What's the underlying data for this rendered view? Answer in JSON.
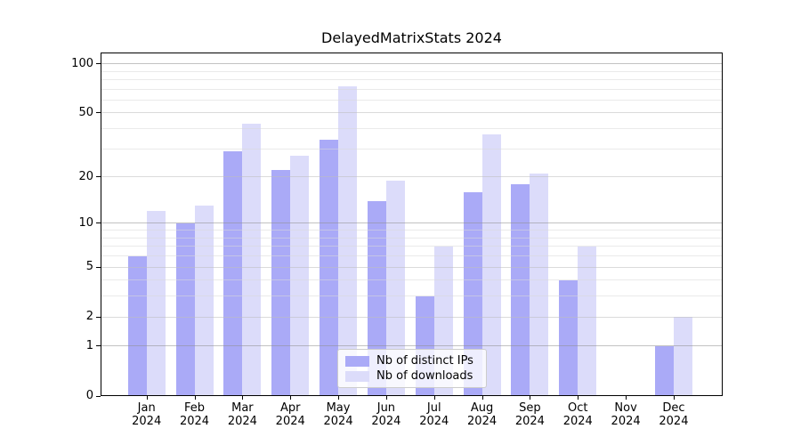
{
  "title": "DelayedMatrixStats 2024",
  "colors": {
    "bar_ips": "#aaaaf7",
    "bar_downloads": "#dcdcfa",
    "grid_decade": "#8f8f8f",
    "grid_mid": "#bdbdbd",
    "grid_minor": "#d8d8d8",
    "axis": "#000000",
    "legend_border": "#cccccc",
    "background": "#ffffff",
    "text": "#000000"
  },
  "chart_data": {
    "type": "bar",
    "scale": "log1p",
    "title": "DelayedMatrixStats 2024",
    "categories": [
      {
        "month": "Jan",
        "year": "2024"
      },
      {
        "month": "Feb",
        "year": "2024"
      },
      {
        "month": "Mar",
        "year": "2024"
      },
      {
        "month": "Apr",
        "year": "2024"
      },
      {
        "month": "May",
        "year": "2024"
      },
      {
        "month": "Jun",
        "year": "2024"
      },
      {
        "month": "Jul",
        "year": "2024"
      },
      {
        "month": "Aug",
        "year": "2024"
      },
      {
        "month": "Sep",
        "year": "2024"
      },
      {
        "month": "Oct",
        "year": "2024"
      },
      {
        "month": "Nov",
        "year": "2024"
      },
      {
        "month": "Dec",
        "year": "2024"
      }
    ],
    "series": [
      {
        "name": "Nb of distinct IPs",
        "color_key": "bar_ips",
        "values": [
          6,
          10,
          29,
          22,
          34,
          14,
          3,
          16,
          18,
          4,
          0,
          1
        ]
      },
      {
        "name": "Nb of downloads",
        "color_key": "bar_downloads",
        "values": [
          12,
          13,
          43,
          27,
          73,
          19,
          7,
          37,
          21,
          7,
          0,
          2
        ]
      }
    ],
    "y_axis": {
      "tick_labels": [
        100,
        50,
        20,
        10,
        5,
        2,
        1,
        0
      ],
      "decade_gridlines": [
        1,
        10,
        100
      ],
      "mid_gridlines": [
        2,
        5,
        20,
        50
      ],
      "minor_gridlines": [
        3,
        4,
        6,
        7,
        8,
        9,
        30,
        40,
        60,
        70,
        80,
        90
      ],
      "ylim": [
        0,
        117
      ]
    },
    "legend": {
      "position": "lower center",
      "items": [
        {
          "label": "Nb of distinct IPs",
          "color_key": "bar_ips"
        },
        {
          "label": "Nb of downloads",
          "color_key": "bar_downloads"
        }
      ]
    }
  }
}
